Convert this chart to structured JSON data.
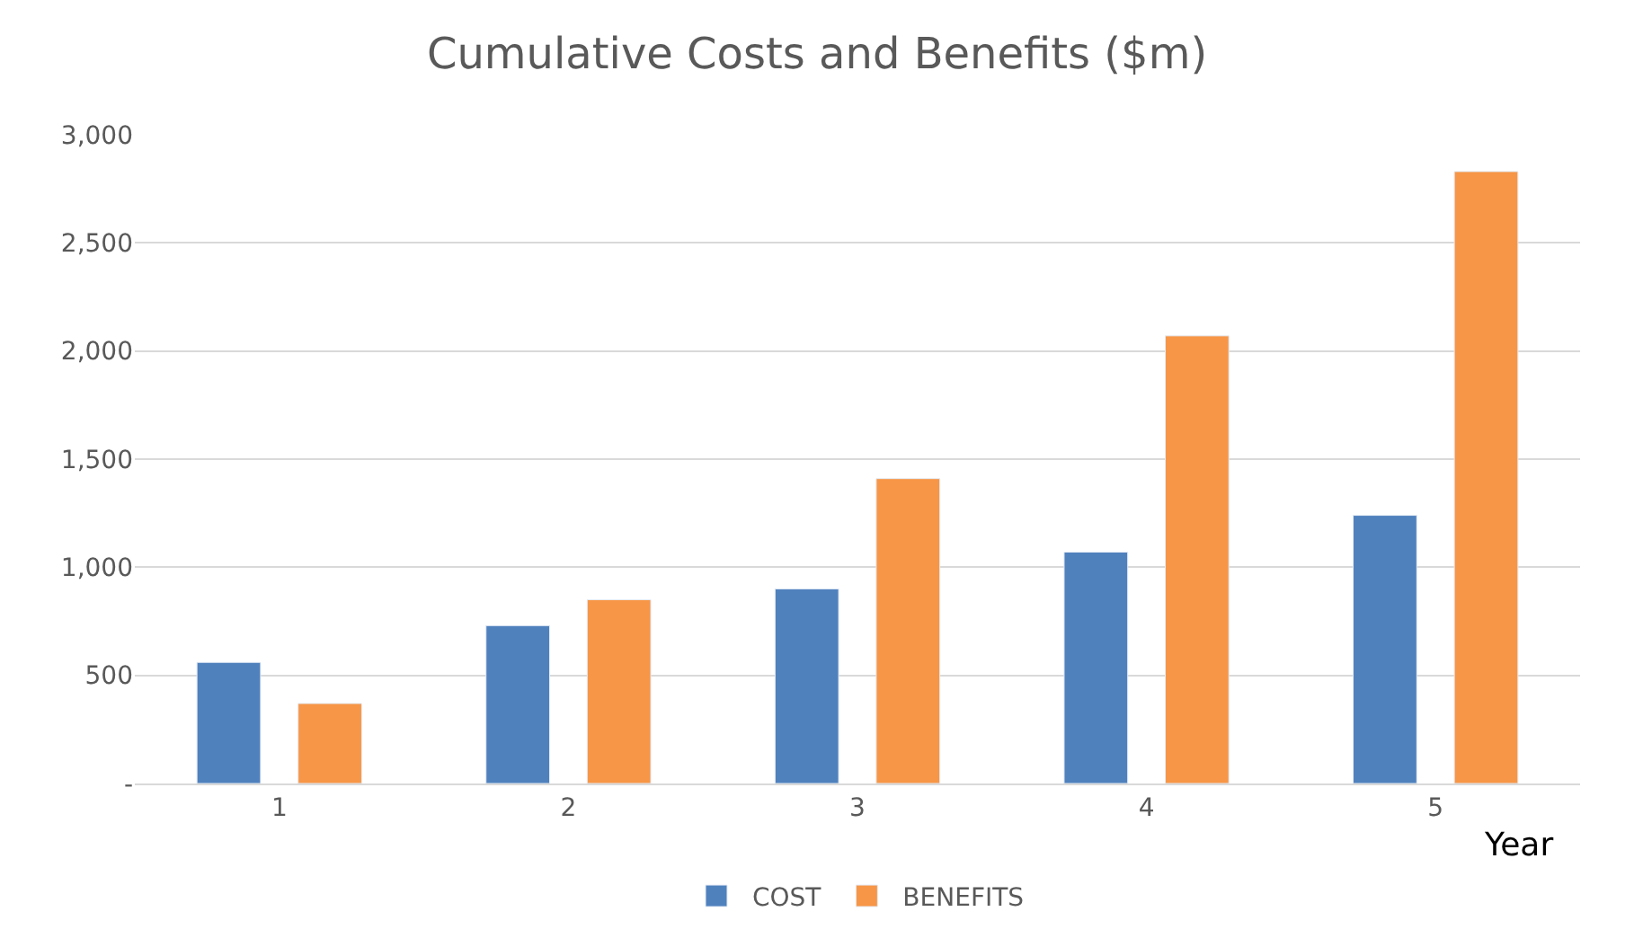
{
  "chart_data": {
    "type": "bar",
    "title": "Cumulative Costs and Benefits ($m)",
    "xlabel": "Year",
    "categories": [
      "1",
      "2",
      "3",
      "4",
      "5"
    ],
    "series": [
      {
        "name": "COST",
        "color": "#4f81bd",
        "values": [
          560,
          730,
          900,
          1070,
          1240
        ]
      },
      {
        "name": "BENEFITS",
        "color": "#f79646",
        "values": [
          370,
          850,
          1410,
          2070,
          2830
        ]
      }
    ],
    "ylim": [
      0,
      3000
    ],
    "yticks": [
      {
        "value": 0,
        "label": "-"
      },
      {
        "value": 500,
        "label": "500"
      },
      {
        "value": 1000,
        "label": "1,000"
      },
      {
        "value": 1500,
        "label": "1,500"
      },
      {
        "value": 2000,
        "label": "2,000"
      },
      {
        "value": 2500,
        "label": "2,500"
      },
      {
        "value": 3000,
        "label": "3,000"
      }
    ],
    "grid": "y",
    "legend": "bottom"
  }
}
